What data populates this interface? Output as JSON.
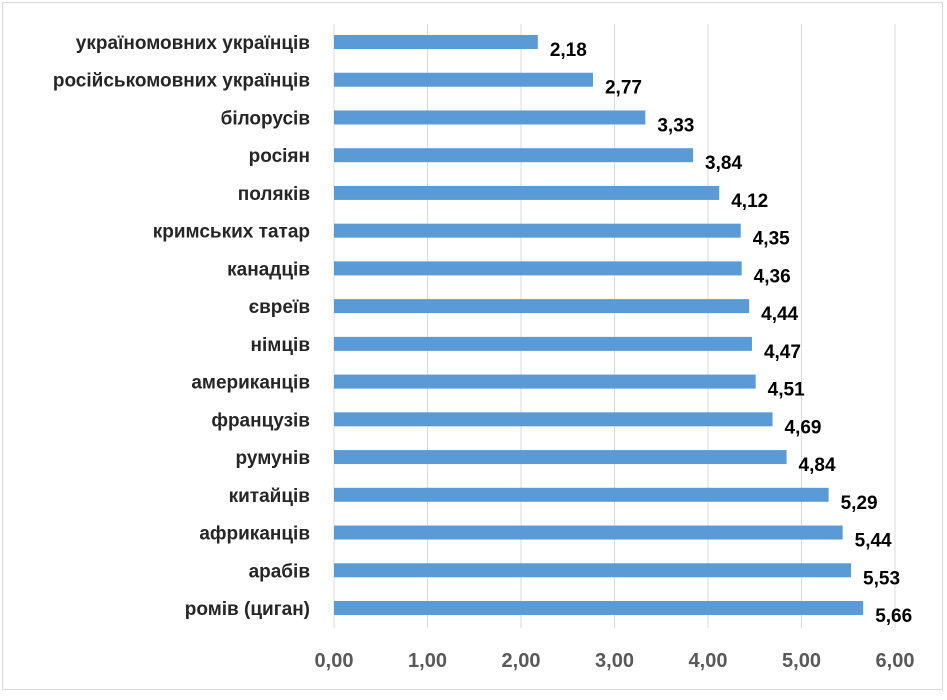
{
  "chart_data": {
    "type": "bar",
    "orientation": "horizontal",
    "categories": [
      "україномовних українців",
      "російськомовних українців",
      "білорусів",
      "росіян",
      "поляків",
      "кримських татар",
      "канадців",
      "євреїв",
      "німців",
      "американців",
      "французів",
      "румунів",
      "китайців",
      "африканців",
      "арабів",
      "ромів (циган)"
    ],
    "values": [
      2.18,
      2.77,
      3.33,
      3.84,
      4.12,
      4.35,
      4.36,
      4.44,
      4.47,
      4.51,
      4.69,
      4.84,
      5.29,
      5.44,
      5.53,
      5.66
    ],
    "value_labels": [
      "2,18",
      "2,77",
      "3,33",
      "3,84",
      "4,12",
      "4,35",
      "4,36",
      "4,44",
      "4,47",
      "4,51",
      "4,69",
      "4,84",
      "5,29",
      "5,44",
      "5,53",
      "5,66"
    ],
    "xlim": [
      0,
      6
    ],
    "x_ticks": [
      "0,00",
      "1,00",
      "2,00",
      "3,00",
      "4,00",
      "5,00",
      "6,00"
    ],
    "grid": "vertical",
    "legend": "none",
    "title": "",
    "xlabel": "",
    "ylabel": "",
    "colors": {
      "bar": "#5b9bd5",
      "grid": "#d9d9d9"
    }
  }
}
